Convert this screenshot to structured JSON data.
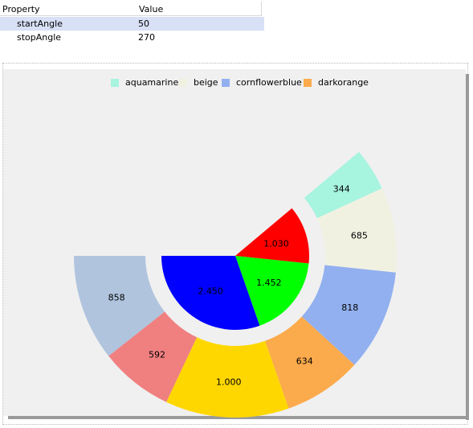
{
  "property_grid": {
    "header_property": "Property",
    "header_value": "Value",
    "rows": [
      {
        "property": "startAngle",
        "value": "50"
      },
      {
        "property": "stopAngle",
        "value": "270"
      }
    ]
  },
  "chart_data": {
    "type": "pie",
    "start_angle": 50,
    "stop_angle": 270,
    "legend": [
      {
        "label": "aquamarine",
        "color": "#a7f4df"
      },
      {
        "label": "beige",
        "color": "#f1f1e2"
      },
      {
        "label": "cornflowerblue",
        "color": "#92b0ef"
      },
      {
        "label": "darkorange",
        "color": "#fbaa4c"
      }
    ],
    "outer_ring": [
      {
        "label": "344",
        "value": 344,
        "color": "#a7f4df"
      },
      {
        "label": "685",
        "value": 685,
        "color": "#f1f1e2"
      },
      {
        "label": "818",
        "value": 818,
        "color": "#92b0ef"
      },
      {
        "label": "634",
        "value": 634,
        "color": "#fbaa4c"
      },
      {
        "label": "1.000",
        "value": 1000,
        "color": "#ffd700"
      },
      {
        "label": "592",
        "value": 592,
        "color": "#f08080"
      },
      {
        "label": "858",
        "value": 858,
        "color": "#b0c4de"
      }
    ],
    "inner_ring": [
      {
        "label": "1.030",
        "value": 1030,
        "color": "#ff0000"
      },
      {
        "label": "1.452",
        "value": 1452,
        "color": "#00ff00"
      },
      {
        "label": "2.450",
        "value": 2450,
        "color": "#0000ff"
      }
    ]
  }
}
